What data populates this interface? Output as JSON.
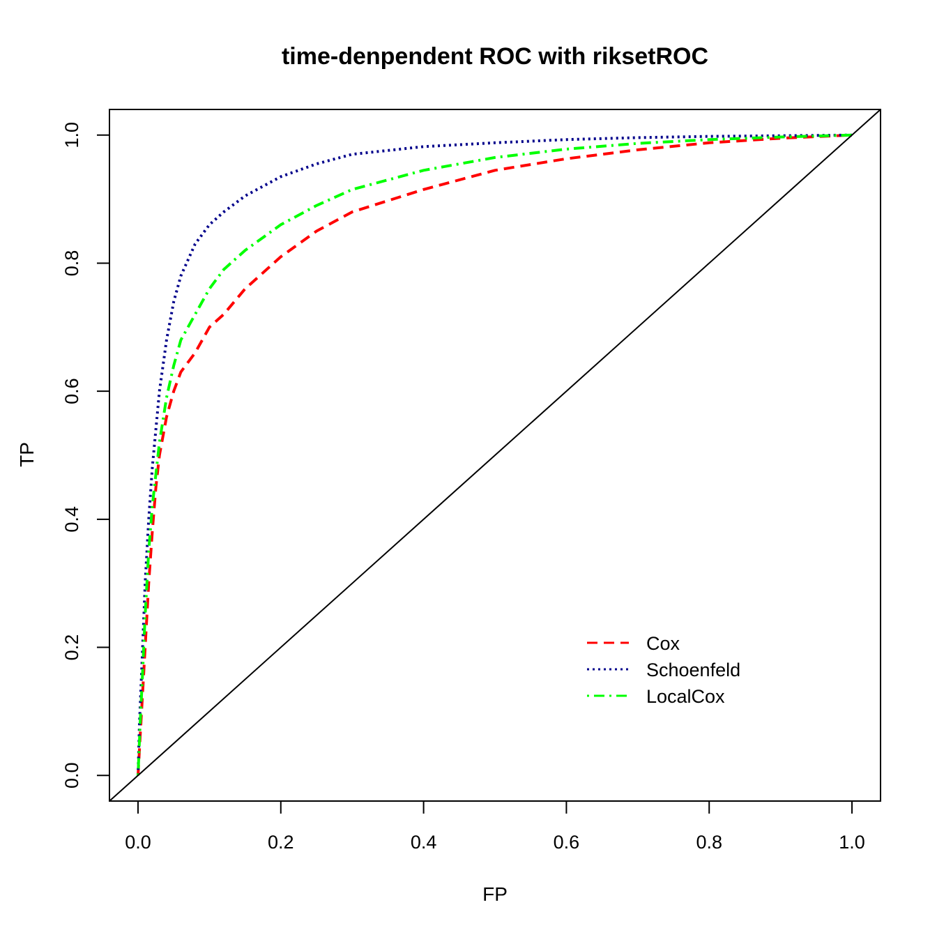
{
  "chart_data": {
    "type": "line",
    "title": "time-denpendent ROC with riksetROC",
    "xlabel": "FP",
    "ylabel": "TP",
    "xlim": [
      -0.04,
      1.04
    ],
    "ylim": [
      -0.04,
      1.04
    ],
    "xticks": [
      0.0,
      0.2,
      0.4,
      0.6,
      0.8,
      1.0
    ],
    "yticks": [
      0.0,
      0.2,
      0.4,
      0.6,
      0.8,
      1.0
    ],
    "xtick_labels": [
      "0.0",
      "0.2",
      "0.4",
      "0.6",
      "0.8",
      "1.0"
    ],
    "ytick_labels": [
      "0.0",
      "0.2",
      "0.4",
      "0.6",
      "0.8",
      "1.0"
    ],
    "grid": false,
    "legend_position": "bottom-right",
    "series": [
      {
        "name": "Cox",
        "color": "#ff0000",
        "dash": "dashed",
        "x": [
          0.0,
          0.003,
          0.006,
          0.01,
          0.015,
          0.02,
          0.025,
          0.03,
          0.04,
          0.05,
          0.06,
          0.08,
          0.1,
          0.12,
          0.15,
          0.2,
          0.25,
          0.3,
          0.4,
          0.5,
          0.6,
          0.7,
          0.8,
          0.9,
          1.0
        ],
        "y": [
          0.0,
          0.06,
          0.12,
          0.2,
          0.3,
          0.38,
          0.45,
          0.5,
          0.56,
          0.6,
          0.63,
          0.66,
          0.7,
          0.72,
          0.76,
          0.81,
          0.85,
          0.88,
          0.915,
          0.945,
          0.963,
          0.977,
          0.988,
          0.995,
          1.0
        ]
      },
      {
        "name": "Schoenfeld",
        "color": "#00008b",
        "dash": "dotted",
        "x": [
          0.0,
          0.002,
          0.005,
          0.01,
          0.015,
          0.02,
          0.03,
          0.04,
          0.05,
          0.06,
          0.08,
          0.1,
          0.12,
          0.15,
          0.2,
          0.25,
          0.3,
          0.4,
          0.5,
          0.6,
          0.7,
          0.8,
          0.9,
          1.0
        ],
        "y": [
          0.0,
          0.08,
          0.16,
          0.3,
          0.4,
          0.48,
          0.6,
          0.68,
          0.74,
          0.78,
          0.83,
          0.86,
          0.88,
          0.905,
          0.935,
          0.955,
          0.97,
          0.982,
          0.988,
          0.993,
          0.996,
          0.998,
          0.999,
          1.0
        ]
      },
      {
        "name": "LocalCox",
        "color": "#00ff00",
        "dash": "dotdash",
        "x": [
          0.0,
          0.003,
          0.006,
          0.01,
          0.015,
          0.02,
          0.03,
          0.04,
          0.05,
          0.06,
          0.08,
          0.1,
          0.12,
          0.15,
          0.2,
          0.25,
          0.3,
          0.4,
          0.5,
          0.6,
          0.7,
          0.8,
          0.9,
          1.0
        ],
        "y": [
          0.0,
          0.08,
          0.15,
          0.25,
          0.35,
          0.42,
          0.52,
          0.59,
          0.64,
          0.68,
          0.72,
          0.76,
          0.79,
          0.82,
          0.86,
          0.89,
          0.915,
          0.945,
          0.965,
          0.978,
          0.987,
          0.993,
          0.997,
          1.0
        ]
      },
      {
        "name": "",
        "color": "#000000",
        "dash": "solid",
        "x": [
          -0.04,
          1.04
        ],
        "y": [
          -0.04,
          1.04
        ]
      }
    ]
  }
}
